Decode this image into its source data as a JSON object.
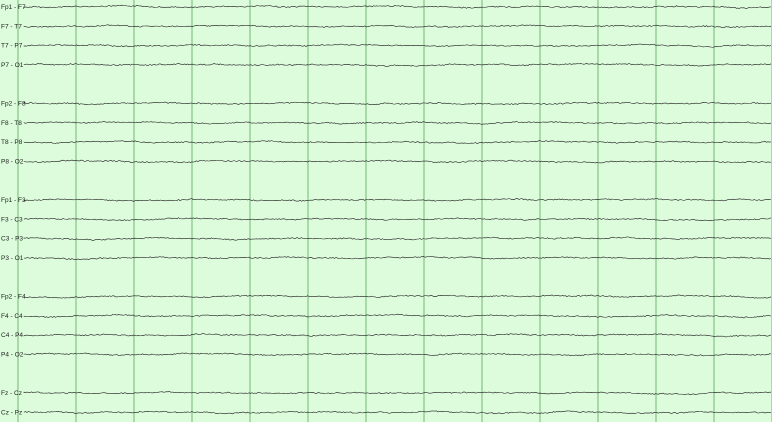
{
  "viewer": {
    "background_color": "#dcfcdc",
    "gridline_color": "#5aa55a",
    "trace_color": "#1a1a1a",
    "seconds_visible": 13,
    "channel_groups": [
      [
        "Fp1 - F7",
        "F7 - T7",
        "T7 - P7",
        "P7 - O1"
      ],
      [
        "Fp2 - F8",
        "F8 - T8",
        "T8 - P8",
        "P8 - O2"
      ],
      [
        "Fp1 - F3",
        "F3 - C3",
        "C3 - P3",
        "P3 - O1"
      ],
      [
        "Fp2 - F4",
        "F4 - C4",
        "C4 - P4",
        "P4 - O2"
      ],
      [
        "Fz - Cz",
        "Cz - Pz"
      ]
    ]
  }
}
